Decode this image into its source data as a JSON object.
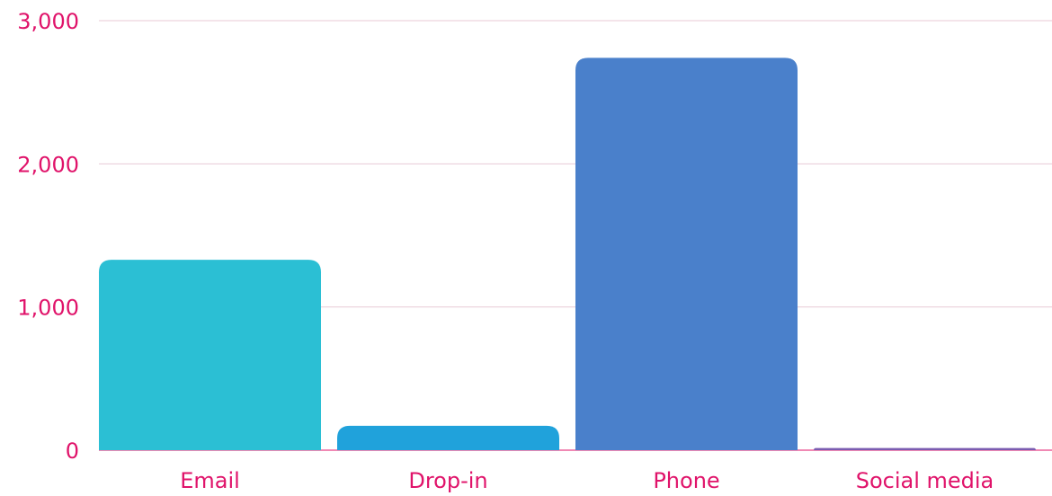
{
  "colors": {
    "text": "#e0136a",
    "grid": "#e8c9d6",
    "background": "#ffffff"
  },
  "chart_data": {
    "type": "bar",
    "title": "",
    "xlabel": "",
    "ylabel": "",
    "categories": [
      "Email",
      "Drop-in",
      "Phone",
      "Social media"
    ],
    "values": [
      1330,
      170,
      2740,
      15
    ],
    "bar_colors": [
      "#2bbfd4",
      "#20a2db",
      "#4a80cb",
      "#7a5bb0"
    ],
    "ylim": [
      0,
      3000
    ],
    "yticks": [
      0,
      1000,
      2000,
      3000
    ],
    "ytick_labels": [
      "0",
      "1,000",
      "2,000",
      "3,000"
    ],
    "grid": true,
    "legend": "none"
  }
}
